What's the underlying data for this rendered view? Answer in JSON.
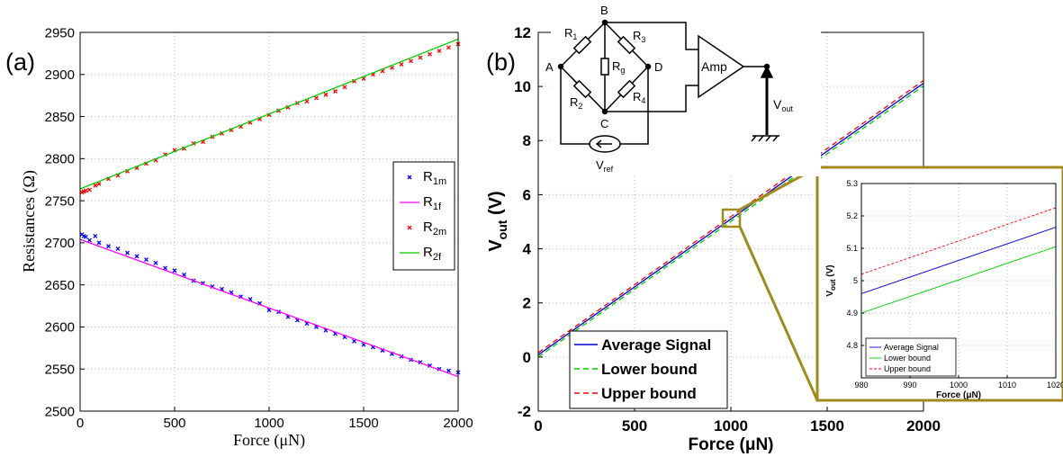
{
  "panel_labels": {
    "a": "(a)",
    "b": "(b)"
  },
  "chart_data": [
    {
      "type": "scatter",
      "panel": "(a)",
      "xlabel": "Force (μN)",
      "ylabel": "Resistances (Ω)",
      "xlim": [
        0,
        2000
      ],
      "ylim": [
        2500,
        2950
      ],
      "xticks": [
        "0",
        "500",
        "1000",
        "1500",
        "2000"
      ],
      "yticks": [
        "2500",
        "2550",
        "2600",
        "2650",
        "2700",
        "2750",
        "2800",
        "2850",
        "2900",
        "2950"
      ],
      "grid": true,
      "legend_position": "right",
      "series": [
        {
          "name": "R1m",
          "label_main": "R",
          "label_sub": "1m",
          "kind": "scatter",
          "color": "#0000ff",
          "x": [
            10,
            20,
            30,
            50,
            80,
            100,
            150,
            200,
            250,
            300,
            350,
            400,
            450,
            500,
            550,
            600,
            650,
            700,
            750,
            800,
            850,
            900,
            950,
            1000,
            1050,
            1100,
            1150,
            1200,
            1250,
            1300,
            1350,
            1400,
            1450,
            1500,
            1550,
            1600,
            1650,
            1700,
            1750,
            1800,
            1850,
            1900,
            1950,
            2000
          ],
          "y": [
            2710,
            2708,
            2707,
            2703,
            2708,
            2700,
            2696,
            2693,
            2688,
            2684,
            2680,
            2676,
            2670,
            2667,
            2662,
            2655,
            2652,
            2648,
            2645,
            2641,
            2636,
            2633,
            2628,
            2620,
            2618,
            2612,
            2608,
            2604,
            2600,
            2596,
            2592,
            2588,
            2583,
            2579,
            2576,
            2572,
            2568,
            2565,
            2561,
            2558,
            2554,
            2550,
            2548,
            2546
          ]
        },
        {
          "name": "R1f",
          "label_main": "R",
          "label_sub": "1f",
          "kind": "line",
          "color": "#ff00ff",
          "x": [
            0,
            2000
          ],
          "y": [
            2704,
            2541
          ]
        },
        {
          "name": "R2m",
          "label_main": "R",
          "label_sub": "2m",
          "kind": "scatter",
          "color": "#ff0000",
          "x": [
            10,
            20,
            30,
            50,
            80,
            100,
            150,
            200,
            250,
            300,
            350,
            400,
            450,
            500,
            550,
            600,
            650,
            700,
            750,
            800,
            850,
            900,
            950,
            1000,
            1050,
            1100,
            1150,
            1200,
            1250,
            1300,
            1350,
            1400,
            1450,
            1500,
            1550,
            1600,
            1650,
            1700,
            1750,
            1800,
            1850,
            1900,
            1950,
            2000
          ],
          "y": [
            2760,
            2761,
            2762,
            2763,
            2768,
            2770,
            2776,
            2780,
            2785,
            2789,
            2794,
            2798,
            2805,
            2810,
            2812,
            2818,
            2820,
            2826,
            2830,
            2834,
            2838,
            2843,
            2847,
            2852,
            2857,
            2861,
            2866,
            2868,
            2872,
            2876,
            2880,
            2885,
            2892,
            2895,
            2900,
            2904,
            2908,
            2912,
            2916,
            2920,
            2924,
            2928,
            2932,
            2936
          ]
        },
        {
          "name": "R2f",
          "label_main": "R",
          "label_sub": "2f",
          "kind": "line",
          "color": "#00cc00",
          "x": [
            0,
            2000
          ],
          "y": [
            2764,
            2942
          ]
        }
      ]
    },
    {
      "type": "line",
      "panel": "(b)",
      "xlabel": "Force (μN)",
      "ylabel_main": "V",
      "ylabel_sub": "out",
      "ylabel_unit": " (V)",
      "xlim": [
        0,
        2000
      ],
      "ylim": [
        -2,
        12
      ],
      "xticks": [
        "0",
        "500",
        "1000",
        "1500",
        "2000"
      ],
      "yticks": [
        "-2",
        "0",
        "2",
        "4",
        "6",
        "8",
        "10",
        "12"
      ],
      "grid": true,
      "legend_position": "bottom-left",
      "series": [
        {
          "name": "Average Signal",
          "color": "#0000cc",
          "dash": "solid",
          "x": [
            0,
            2000
          ],
          "y": [
            0.08,
            10.12
          ]
        },
        {
          "name": "Lower bound",
          "color": "#00cc00",
          "dash": "dashed",
          "x": [
            0,
            2000
          ],
          "y": [
            0.0,
            10.02
          ]
        },
        {
          "name": "Upper bound",
          "color": "#ff0000",
          "dash": "dashed",
          "x": [
            0,
            2000
          ],
          "y": [
            0.16,
            10.22
          ]
        }
      ]
    },
    {
      "type": "line",
      "panel": "(b) inset",
      "xlabel": "Force (μN)",
      "ylabel_main": "V",
      "ylabel_sub": "out",
      "ylabel_unit": " (V)",
      "xlim": [
        980,
        1020
      ],
      "ylim": [
        4.7,
        5.3
      ],
      "xticks": [
        "980",
        "990",
        "1000",
        "1010",
        "1020"
      ],
      "yticks": [
        "4.8",
        "4.9",
        "5",
        "5.1",
        "5.2",
        "5.3"
      ],
      "grid": true,
      "legend_position": "bottom-left",
      "series": [
        {
          "name": "Average Signal",
          "color": "#0000cc",
          "dash": "solid",
          "x": [
            980,
            1020
          ],
          "y": [
            4.96,
            5.165
          ]
        },
        {
          "name": "Lower bound",
          "color": "#00cc00",
          "dash": "solid",
          "x": [
            980,
            1020
          ],
          "y": [
            4.9,
            5.105
          ]
        },
        {
          "name": "Upper bound",
          "color": "#ff0000",
          "dash": "dashed",
          "x": [
            980,
            1020
          ],
          "y": [
            5.02,
            5.225
          ]
        }
      ]
    }
  ],
  "circuit": {
    "nodes": {
      "A": "A",
      "B": "B",
      "C": "C",
      "D": "D"
    },
    "resistors": [
      {
        "main": "R",
        "sub": "1"
      },
      {
        "main": "R",
        "sub": "2"
      },
      {
        "main": "R",
        "sub": "3"
      },
      {
        "main": "R",
        "sub": "4"
      },
      {
        "main": "R",
        "sub": "g"
      }
    ],
    "amp_label": "Amp",
    "vout_main": "V",
    "vout_sub": "out",
    "vref_main": "V",
    "vref_sub": "ref"
  },
  "colors": {
    "zoom_box": "#a08a1e"
  }
}
